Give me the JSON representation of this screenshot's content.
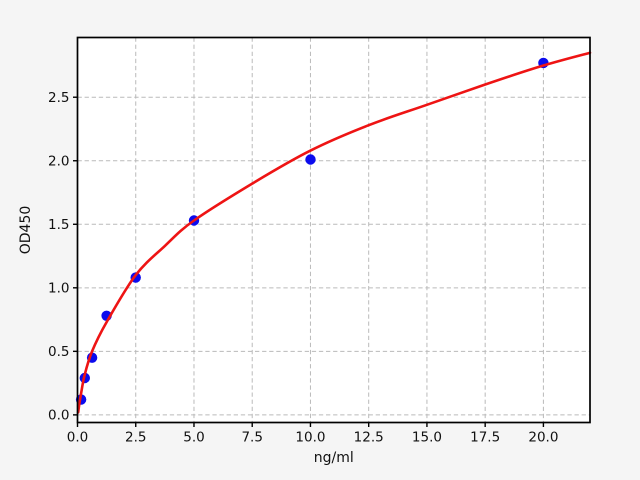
{
  "figure": {
    "background": "#f5f5f5",
    "plot_background": "#ffffff",
    "grid_color": "#bababa",
    "spine_color": "#000000",
    "text_color": "#111111"
  },
  "chart_data": {
    "type": "scatter",
    "title": "",
    "xlabel": "ng/ml",
    "ylabel": "OD450",
    "xlim": [
      0,
      22
    ],
    "ylim": [
      -0.06,
      2.97
    ],
    "grid": true,
    "grid_style": "dashed",
    "legend": false,
    "x_ticks": [
      "0.0",
      "2.5",
      "5.0",
      "7.5",
      "10.0",
      "12.5",
      "15.0",
      "17.5",
      "20.0"
    ],
    "y_ticks": [
      "0.0",
      "0.5",
      "1.0",
      "1.5",
      "2.0",
      "2.5"
    ],
    "series": [
      {
        "name": "standard-points",
        "type": "scatter",
        "marker": "circle",
        "color": "#0b0bee",
        "marker_radius": 5.2,
        "x": [
          0.156,
          0.312,
          0.625,
          1.25,
          2.5,
          5,
          10,
          20
        ],
        "y": [
          0.12,
          0.29,
          0.45,
          0.78,
          1.08,
          1.53,
          2.01,
          2.77
        ]
      },
      {
        "name": "fit-curve",
        "type": "line",
        "color": "#ee1414",
        "line_width": 2.6,
        "x": [
          0.03,
          0.08,
          0.156,
          0.3,
          0.625,
          1.25,
          2.5,
          3.75,
          5,
          7.5,
          10,
          12.5,
          15,
          17.5,
          20,
          22
        ],
        "y": [
          0.02,
          0.09,
          0.17,
          0.31,
          0.5,
          0.73,
          1.1,
          1.33,
          1.53,
          1.82,
          2.08,
          2.28,
          2.44,
          2.6,
          2.75,
          2.85
        ]
      }
    ]
  }
}
